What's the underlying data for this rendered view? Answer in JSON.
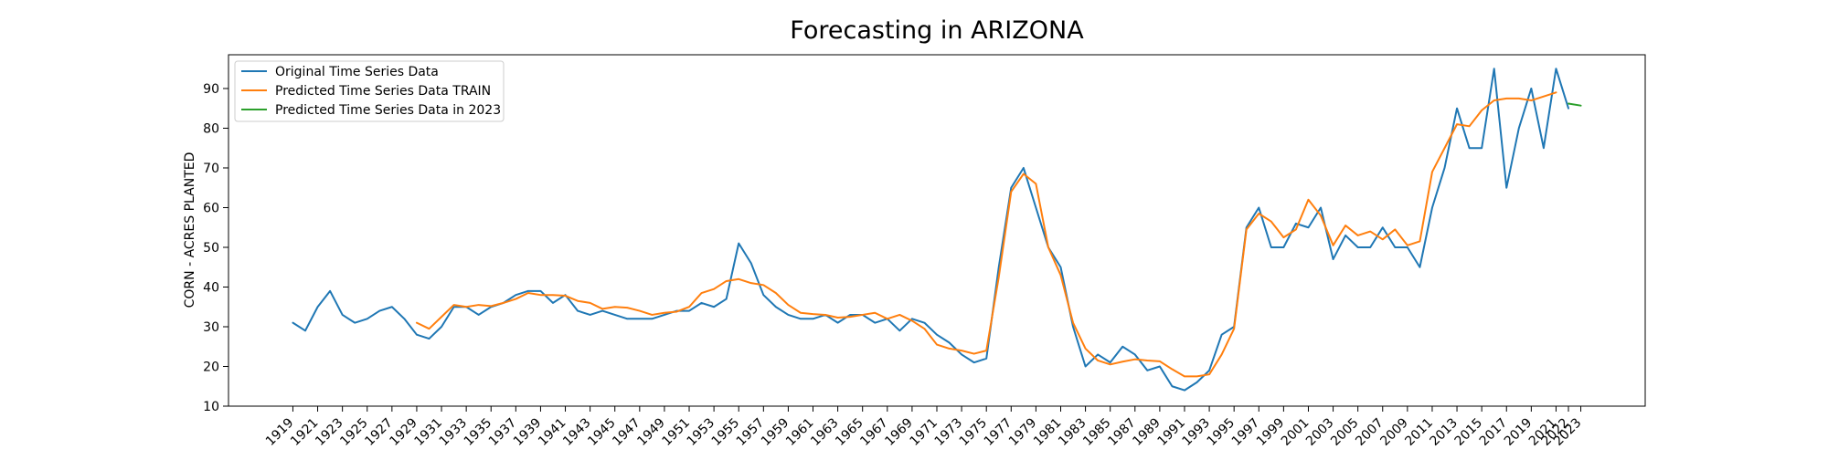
{
  "chart_data": {
    "type": "line",
    "title": "Forecasting in ARIZONA",
    "xlabel": "",
    "ylabel": "CORN - ACRES PLANTED",
    "xlim": [
      1913.8,
      2028.2
    ],
    "ylim": [
      10,
      98.5
    ],
    "y_ticks": [
      10,
      20,
      30,
      40,
      50,
      60,
      70,
      80,
      90
    ],
    "x_ticks": [
      "1919",
      "1921",
      "1923",
      "1925",
      "1927",
      "1929",
      "1931",
      "1933",
      "1935",
      "1937",
      "1939",
      "1941",
      "1943",
      "1945",
      "1947",
      "1949",
      "1951",
      "1953",
      "1955",
      "1957",
      "1959",
      "1961",
      "1963",
      "1965",
      "1967",
      "1969",
      "1971",
      "1973",
      "1975",
      "1977",
      "1979",
      "1981",
      "1983",
      "1985",
      "1987",
      "1989",
      "1991",
      "1993",
      "1995",
      "1997",
      "1999",
      "2001",
      "2003",
      "2005",
      "2007",
      "2009",
      "2011",
      "2013",
      "2015",
      "2017",
      "2019",
      "2021",
      "2022",
      "2023"
    ],
    "grid": false,
    "legend_position": "top-left",
    "series": [
      {
        "name": "Original Time Series Data",
        "color": "#1f77b4",
        "x": [
          1919,
          1920,
          1921,
          1922,
          1923,
          1924,
          1925,
          1926,
          1927,
          1928,
          1929,
          1930,
          1931,
          1932,
          1933,
          1934,
          1935,
          1936,
          1937,
          1938,
          1939,
          1940,
          1941,
          1942,
          1943,
          1944,
          1945,
          1946,
          1947,
          1948,
          1949,
          1950,
          1951,
          1952,
          1953,
          1954,
          1955,
          1956,
          1957,
          1958,
          1959,
          1960,
          1961,
          1962,
          1963,
          1964,
          1965,
          1966,
          1967,
          1968,
          1969,
          1970,
          1971,
          1972,
          1973,
          1974,
          1975,
          1976,
          1977,
          1978,
          1979,
          1980,
          1981,
          1982,
          1983,
          1984,
          1985,
          1986,
          1987,
          1988,
          1989,
          1990,
          1991,
          1992,
          1993,
          1994,
          1995,
          1996,
          1997,
          1998,
          1999,
          2000,
          2001,
          2002,
          2003,
          2004,
          2005,
          2006,
          2007,
          2008,
          2009,
          2010,
          2011,
          2012,
          2013,
          2014,
          2015,
          2016,
          2017,
          2018,
          2019,
          2020,
          2021,
          2022
        ],
        "values": [
          31,
          29,
          35,
          39,
          33,
          31,
          32,
          34,
          35,
          32,
          28,
          27,
          30,
          35,
          35,
          33,
          35,
          36,
          38,
          39,
          39,
          36,
          38,
          34,
          33,
          34,
          33,
          32,
          32,
          32,
          33,
          34,
          34,
          36,
          35,
          37,
          51,
          46,
          38,
          35,
          33,
          32,
          32,
          33,
          31,
          33,
          33,
          31,
          32,
          29,
          32,
          31,
          28,
          26,
          23,
          21,
          22,
          45,
          65,
          70,
          60,
          50,
          45,
          30,
          20,
          23,
          21,
          25,
          23,
          19,
          20,
          15,
          14,
          16,
          19,
          28,
          30,
          55,
          60,
          50,
          50,
          56,
          55,
          60,
          47,
          53,
          50,
          50,
          55,
          50,
          50,
          45,
          60,
          70,
          85,
          75,
          75,
          95,
          65,
          80,
          90,
          75,
          95,
          85
        ]
      },
      {
        "name": "Predicted Time Series Data TRAIN",
        "color": "#ff7f0e",
        "x": [
          1929,
          1930,
          1931,
          1932,
          1933,
          1934,
          1935,
          1936,
          1937,
          1938,
          1939,
          1940,
          1941,
          1942,
          1943,
          1944,
          1945,
          1946,
          1947,
          1948,
          1949,
          1950,
          1951,
          1952,
          1953,
          1954,
          1955,
          1956,
          1957,
          1958,
          1959,
          1960,
          1961,
          1962,
          1963,
          1964,
          1965,
          1966,
          1967,
          1968,
          1969,
          1970,
          1971,
          1972,
          1973,
          1974,
          1975,
          1976,
          1977,
          1978,
          1979,
          1980,
          1981,
          1982,
          1983,
          1984,
          1985,
          1986,
          1987,
          1988,
          1989,
          1990,
          1991,
          1992,
          1993,
          1994,
          1995,
          1996,
          1997,
          1998,
          1999,
          2000,
          2001,
          2002,
          2003,
          2004,
          2005,
          2006,
          2007,
          2008,
          2009,
          2010,
          2011,
          2012,
          2013,
          2014,
          2015,
          2016,
          2017,
          2018,
          2019,
          2020,
          2021
        ],
        "values": [
          31,
          29.5,
          32.5,
          35.5,
          35,
          35.5,
          35.2,
          36,
          37,
          38.5,
          38,
          38,
          37.8,
          36.5,
          36,
          34.5,
          35,
          34.8,
          34,
          33,
          33.5,
          33.8,
          35,
          38.5,
          39.5,
          41.5,
          42,
          41,
          40.5,
          38.5,
          35.5,
          33.5,
          33.2,
          33,
          32.3,
          32.5,
          33,
          33.5,
          32,
          33,
          31.5,
          29.5,
          25.5,
          24.5,
          24,
          23.2,
          24,
          42.5,
          64,
          68.5,
          66,
          50,
          43,
          31,
          24.5,
          21.5,
          20.5,
          21.2,
          21.8,
          21.5,
          21.3,
          19.3,
          17.5,
          17.5,
          18,
          23,
          29.5,
          54.5,
          58.5,
          56.5,
          52.5,
          54.5,
          62,
          58,
          50.5,
          55.5,
          53,
          54,
          52,
          54.5,
          50.5,
          51.5,
          69,
          75,
          81,
          80.5,
          84.5,
          87,
          87.5,
          87.5,
          87,
          88,
          89
        ]
      },
      {
        "name": "Predicted Time Series Data in 2023",
        "color": "#2ca02c",
        "x": [
          2022,
          2023
        ],
        "values": [
          86.2,
          85.7
        ]
      }
    ]
  }
}
